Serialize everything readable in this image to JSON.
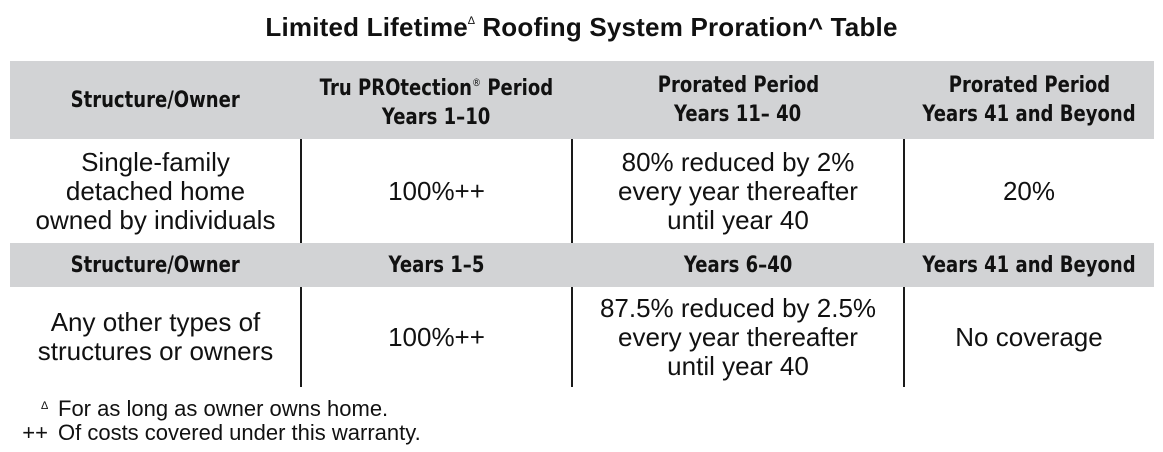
{
  "title": {
    "part1": "Limited Lifetime",
    "sup1": "∆",
    "part2": " Roofing System Proration",
    "caret": "^",
    "part3": " Table"
  },
  "section1": {
    "headers": {
      "col1": "Structure/Owner",
      "col2_line1_main": "Tru PROtection",
      "col2_line1_sup": "®",
      "col2_line1_tail": " Period",
      "col2_line2": "Years 1–10",
      "col3_line1": "Prorated Period",
      "col3_line2": "Years 11– 40",
      "col4_line1": "Prorated Period",
      "col4_line2": "Years 41 and Beyond"
    },
    "row": {
      "col1": [
        "Single-family",
        "detached home",
        "owned by individuals"
      ],
      "col2": "100%++",
      "col3": [
        "80% reduced by 2%",
        "every year thereafter",
        "until year 40"
      ],
      "col4": "20%"
    }
  },
  "section2": {
    "headers": {
      "col1": "Structure/Owner",
      "col2": "Years 1–5",
      "col3": "Years 6–40",
      "col4": "Years 41 and Beyond"
    },
    "row": {
      "col1": [
        "Any other types of",
        "structures or owners"
      ],
      "col2": "100%++",
      "col3": [
        "87.5% reduced by 2.5%",
        "every year thereafter",
        "until year 40"
      ],
      "col4": "No coverage"
    }
  },
  "footnotes": [
    {
      "mark": "∆",
      "text": "For as long as owner owns home."
    },
    {
      "mark": "++",
      "text": "Of costs covered under this warranty."
    }
  ],
  "colors": {
    "header_bg": "#d2d3d5",
    "text": "#111111",
    "divider": "#1a1a1a"
  }
}
